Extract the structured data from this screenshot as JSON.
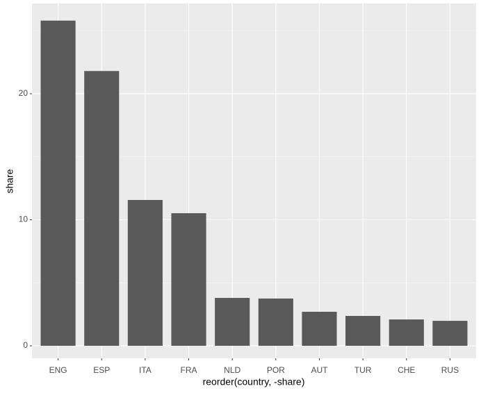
{
  "chart_data": {
    "type": "bar",
    "x_label": "reorder(country, -share)",
    "y_label": "share",
    "categories": [
      "ENG",
      "ESP",
      "ITA",
      "FRA",
      "NLD",
      "POR",
      "AUT",
      "TUR",
      "CHE",
      "RUS"
    ],
    "values": [
      25.8,
      21.8,
      11.57,
      10.52,
      3.8,
      3.75,
      2.7,
      2.37,
      2.09,
      1.98
    ],
    "color": "#595959",
    "ylim": [
      -0.99,
      27.16
    ],
    "yticks": [
      0,
      10,
      20
    ],
    "grid": true
  }
}
